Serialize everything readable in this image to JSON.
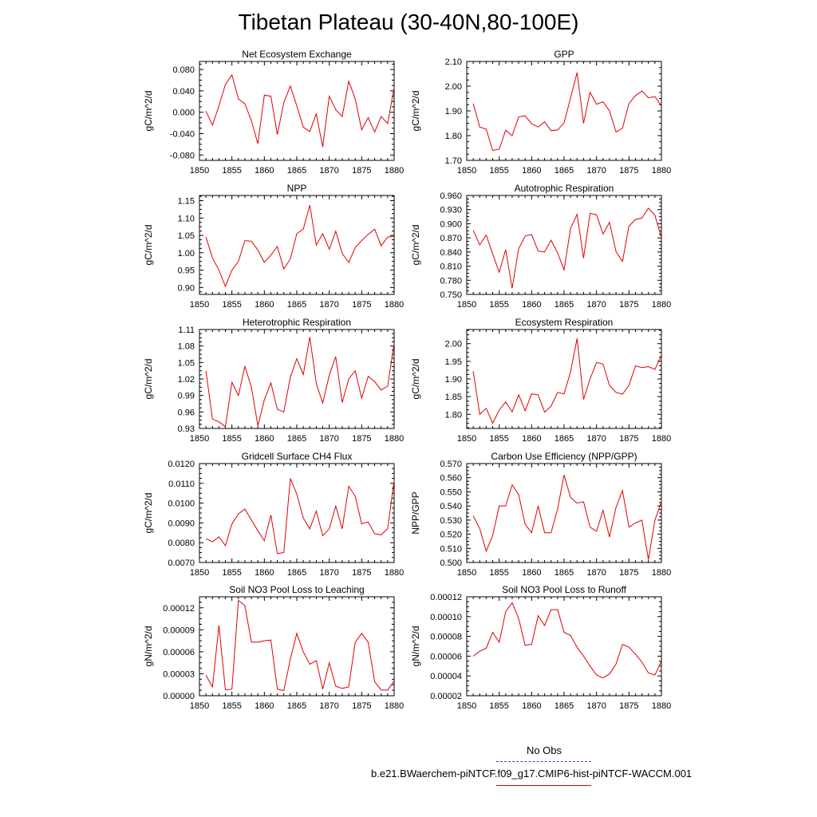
{
  "title": "Tibetan Plateau (30-40N,80-100E)",
  "legend": {
    "items": [
      {
        "label": "No Obs",
        "color": "#3a3ad8",
        "style": "dashed"
      },
      {
        "label": "b.e21.BWaerchem-piNTCF.f09_g17.CMIP6-hist-piNTCF-WACCM.001",
        "color": "#e00000",
        "style": "solid"
      }
    ]
  },
  "chart_data": [
    {
      "type": "line",
      "title": "Net Ecosystem Exchange",
      "ylabel": "gC/m^2/d",
      "xlim": [
        1850,
        1880
      ],
      "ylim": [
        -0.09,
        0.095
      ],
      "xticks": [
        1850,
        1855,
        1860,
        1865,
        1870,
        1875,
        1880
      ],
      "yticks": [
        "-0.080",
        "-0.040",
        "0.000",
        "0.040",
        "0.080"
      ],
      "ytick_values": [
        -0.08,
        -0.04,
        0.0,
        0.04,
        0.08
      ],
      "series": [
        {
          "color": "#e00000",
          "x": [
            1851,
            1852,
            1853,
            1854,
            1855,
            1856,
            1857,
            1858,
            1859,
            1860,
            1861,
            1862,
            1863,
            1864,
            1865,
            1866,
            1867,
            1868,
            1869,
            1870,
            1871,
            1872,
            1873,
            1874,
            1875,
            1876,
            1877,
            1878,
            1879,
            1880
          ],
          "values": [
            0.002,
            -0.024,
            0.012,
            0.052,
            0.07,
            0.025,
            0.016,
            -0.016,
            -0.059,
            0.032,
            0.03,
            -0.042,
            0.018,
            0.049,
            0.012,
            -0.028,
            -0.036,
            -0.003,
            -0.065,
            0.03,
            0.005,
            -0.008,
            0.058,
            0.025,
            -0.033,
            -0.01,
            -0.037,
            -0.008,
            -0.021,
            0.046
          ]
        }
      ]
    },
    {
      "type": "line",
      "title": "GPP",
      "ylabel": "gC/m^2/d",
      "xlim": [
        1850,
        1880
      ],
      "ylim": [
        1.7,
        2.1
      ],
      "xticks": [
        1850,
        1855,
        1860,
        1865,
        1870,
        1875,
        1880
      ],
      "yticks": [
        "1.70",
        "1.80",
        "1.90",
        "2.00",
        "2.10"
      ],
      "ytick_values": [
        1.7,
        1.8,
        1.9,
        2.0,
        2.1
      ],
      "series": [
        {
          "color": "#e00000",
          "x": [
            1851,
            1852,
            1853,
            1854,
            1855,
            1856,
            1857,
            1858,
            1859,
            1860,
            1861,
            1862,
            1863,
            1864,
            1865,
            1866,
            1867,
            1868,
            1869,
            1870,
            1871,
            1872,
            1873,
            1874,
            1875,
            1876,
            1877,
            1878,
            1879,
            1880
          ],
          "values": [
            1.93,
            1.835,
            1.826,
            1.74,
            1.745,
            1.822,
            1.8,
            1.876,
            1.88,
            1.848,
            1.835,
            1.856,
            1.82,
            1.823,
            1.852,
            1.952,
            2.055,
            1.85,
            1.975,
            1.927,
            1.937,
            1.9,
            1.815,
            1.83,
            1.93,
            1.962,
            1.98,
            1.953,
            1.958,
            1.92
          ]
        }
      ]
    },
    {
      "type": "line",
      "title": "NPP",
      "ylabel": "gC/m^2/d",
      "xlim": [
        1850,
        1880
      ],
      "ylim": [
        0.88,
        1.165
      ],
      "xticks": [
        1850,
        1855,
        1860,
        1865,
        1870,
        1875,
        1880
      ],
      "yticks": [
        "0.90",
        "0.95",
        "1.00",
        "1.05",
        "1.10",
        "1.15"
      ],
      "ytick_values": [
        0.9,
        0.95,
        1.0,
        1.05,
        1.1,
        1.15
      ],
      "series": [
        {
          "color": "#e00000",
          "x": [
            1851,
            1852,
            1853,
            1854,
            1855,
            1856,
            1857,
            1858,
            1859,
            1860,
            1861,
            1862,
            1863,
            1864,
            1865,
            1866,
            1867,
            1868,
            1869,
            1870,
            1871,
            1872,
            1873,
            1874,
            1875,
            1876,
            1877,
            1878,
            1879,
            1880
          ],
          "values": [
            1.046,
            0.985,
            0.95,
            0.903,
            0.95,
            0.975,
            1.035,
            1.033,
            1.008,
            0.972,
            0.993,
            1.018,
            0.953,
            0.982,
            1.055,
            1.068,
            1.137,
            1.022,
            1.055,
            1.01,
            1.062,
            0.998,
            0.972,
            1.015,
            1.035,
            1.053,
            1.068,
            1.02,
            1.045,
            1.048
          ]
        }
      ]
    },
    {
      "type": "line",
      "title": "Autotrophic Respiration",
      "ylabel": "gC/m^2/d",
      "xlim": [
        1850,
        1880
      ],
      "ylim": [
        0.75,
        0.96
      ],
      "xticks": [
        1850,
        1855,
        1860,
        1865,
        1870,
        1875,
        1880
      ],
      "yticks": [
        "0.750",
        "0.780",
        "0.810",
        "0.840",
        "0.870",
        "0.900",
        "0.930",
        "0.960"
      ],
      "ytick_values": [
        0.75,
        0.78,
        0.81,
        0.84,
        0.87,
        0.9,
        0.93,
        0.96
      ],
      "series": [
        {
          "color": "#e00000",
          "x": [
            1851,
            1852,
            1853,
            1854,
            1855,
            1856,
            1857,
            1858,
            1859,
            1860,
            1861,
            1862,
            1863,
            1864,
            1865,
            1866,
            1867,
            1868,
            1869,
            1870,
            1871,
            1872,
            1873,
            1874,
            1875,
            1876,
            1877,
            1878,
            1879,
            1880
          ],
          "values": [
            0.886,
            0.855,
            0.876,
            0.836,
            0.797,
            0.845,
            0.763,
            0.847,
            0.874,
            0.877,
            0.842,
            0.84,
            0.865,
            0.838,
            0.802,
            0.89,
            0.92,
            0.827,
            0.922,
            0.919,
            0.878,
            0.903,
            0.841,
            0.82,
            0.895,
            0.909,
            0.912,
            0.933,
            0.918,
            0.87
          ]
        }
      ]
    },
    {
      "type": "line",
      "title": "Heterotrophic Respiration",
      "ylabel": "gC/m^2/d",
      "xlim": [
        1850,
        1880
      ],
      "ylim": [
        0.93,
        1.11
      ],
      "xticks": [
        1850,
        1855,
        1860,
        1865,
        1870,
        1875,
        1880
      ],
      "yticks": [
        "0.93",
        "0.96",
        "0.99",
        "1.02",
        "1.05",
        "1.08",
        "1.11"
      ],
      "ytick_values": [
        0.93,
        0.96,
        0.99,
        1.02,
        1.05,
        1.08,
        1.11
      ],
      "series": [
        {
          "color": "#e00000",
          "x": [
            1851,
            1852,
            1853,
            1854,
            1855,
            1856,
            1857,
            1858,
            1859,
            1860,
            1861,
            1862,
            1863,
            1864,
            1865,
            1866,
            1867,
            1868,
            1869,
            1870,
            1871,
            1872,
            1873,
            1874,
            1875,
            1876,
            1877,
            1878,
            1879,
            1880
          ],
          "values": [
            1.035,
            0.947,
            0.942,
            0.933,
            1.014,
            0.99,
            1.043,
            1.005,
            0.935,
            0.982,
            1.013,
            0.965,
            0.96,
            1.023,
            1.057,
            1.028,
            1.096,
            1.012,
            0.976,
            1.027,
            1.061,
            0.977,
            1.02,
            1.035,
            0.985,
            1.025,
            1.015,
            1.0,
            1.007,
            1.085
          ]
        }
      ]
    },
    {
      "type": "line",
      "title": "Ecosystem Respiration",
      "ylabel": "gC/m^2/d",
      "xlim": [
        1850,
        1880
      ],
      "ylim": [
        1.76,
        2.04
      ],
      "xticks": [
        1850,
        1855,
        1860,
        1865,
        1870,
        1875,
        1880
      ],
      "yticks": [
        "1.80",
        "1.85",
        "1.90",
        "1.95",
        "2.00"
      ],
      "ytick_values": [
        1.8,
        1.85,
        1.9,
        1.95,
        2.0
      ],
      "series": [
        {
          "color": "#e00000",
          "x": [
            1851,
            1852,
            1853,
            1854,
            1855,
            1856,
            1857,
            1858,
            1859,
            1860,
            1861,
            1862,
            1863,
            1864,
            1865,
            1866,
            1867,
            1868,
            1869,
            1870,
            1871,
            1872,
            1873,
            1874,
            1875,
            1876,
            1877,
            1878,
            1879,
            1880
          ],
          "values": [
            1.922,
            1.8,
            1.817,
            1.775,
            1.812,
            1.835,
            1.807,
            1.855,
            1.81,
            1.858,
            1.855,
            1.806,
            1.823,
            1.862,
            1.858,
            1.92,
            2.015,
            1.842,
            1.9,
            1.947,
            1.942,
            1.882,
            1.862,
            1.857,
            1.882,
            1.937,
            1.932,
            1.935,
            1.927,
            1.967
          ]
        }
      ]
    },
    {
      "type": "line",
      "title": "Gridcell Surface CH4 Flux",
      "ylabel": "gC/m^2/d",
      "xlim": [
        1850,
        1880
      ],
      "ylim": [
        0.007,
        0.012
      ],
      "xticks": [
        1850,
        1855,
        1860,
        1865,
        1870,
        1875,
        1880
      ],
      "yticks": [
        "0.0070",
        "0.0080",
        "0.0090",
        "0.0100",
        "0.0110",
        "0.0120"
      ],
      "ytick_values": [
        0.007,
        0.008,
        0.009,
        0.01,
        0.011,
        0.012
      ],
      "series": [
        {
          "color": "#e00000",
          "x": [
            1851,
            1852,
            1853,
            1854,
            1855,
            1856,
            1857,
            1858,
            1859,
            1860,
            1861,
            1862,
            1863,
            1864,
            1865,
            1866,
            1867,
            1868,
            1869,
            1870,
            1871,
            1872,
            1873,
            1874,
            1875,
            1876,
            1877,
            1878,
            1879,
            1880
          ],
          "values": [
            0.0082,
            0.00805,
            0.0083,
            0.00785,
            0.00895,
            0.00945,
            0.0097,
            0.00915,
            0.0086,
            0.0081,
            0.0094,
            0.00745,
            0.0075,
            0.01125,
            0.01045,
            0.00925,
            0.0087,
            0.0096,
            0.00835,
            0.0087,
            0.00985,
            0.0087,
            0.01085,
            0.01035,
            0.00895,
            0.00905,
            0.00845,
            0.0084,
            0.0087,
            0.01115
          ]
        }
      ]
    },
    {
      "type": "line",
      "title": "Carbon Use Efficiency (NPP/GPP)",
      "ylabel": "NPP/GPP",
      "xlim": [
        1850,
        1880
      ],
      "ylim": [
        0.5,
        0.57
      ],
      "xticks": [
        1850,
        1855,
        1860,
        1865,
        1870,
        1875,
        1880
      ],
      "yticks": [
        "0.500",
        "0.510",
        "0.520",
        "0.530",
        "0.540",
        "0.550",
        "0.560",
        "0.570"
      ],
      "ytick_values": [
        0.5,
        0.51,
        0.52,
        0.53,
        0.54,
        0.55,
        0.56,
        0.57
      ],
      "series": [
        {
          "color": "#e00000",
          "x": [
            1851,
            1852,
            1853,
            1854,
            1855,
            1856,
            1857,
            1858,
            1859,
            1860,
            1861,
            1862,
            1863,
            1864,
            1865,
            1866,
            1867,
            1868,
            1869,
            1870,
            1871,
            1872,
            1873,
            1874,
            1875,
            1876,
            1877,
            1878,
            1879,
            1880
          ],
          "values": [
            0.533,
            0.524,
            0.508,
            0.519,
            0.54,
            0.54,
            0.555,
            0.548,
            0.527,
            0.521,
            0.54,
            0.521,
            0.521,
            0.538,
            0.562,
            0.546,
            0.542,
            0.543,
            0.525,
            0.522,
            0.537,
            0.518,
            0.539,
            0.551,
            0.525,
            0.528,
            0.53,
            0.502,
            0.53,
            0.543
          ]
        }
      ]
    },
    {
      "type": "line",
      "title": "Soil NO3 Pool Loss to Leaching",
      "ylabel": "gN/m^2/d",
      "xlim": [
        1850,
        1880
      ],
      "ylim": [
        0.0,
        0.000135
      ],
      "xticks": [
        1850,
        1855,
        1860,
        1865,
        1870,
        1875,
        1880
      ],
      "yticks": [
        "0.00000",
        "0.00003",
        "0.00006",
        "0.00009",
        "0.00012"
      ],
      "ytick_values": [
        0.0,
        3e-05,
        6e-05,
        9e-05,
        0.00012
      ],
      "series": [
        {
          "color": "#e00000",
          "x": [
            1851,
            1852,
            1853,
            1854,
            1855,
            1856,
            1857,
            1858,
            1859,
            1860,
            1861,
            1862,
            1863,
            1864,
            1865,
            1866,
            1867,
            1868,
            1869,
            1870,
            1871,
            1872,
            1873,
            1874,
            1875,
            1876,
            1877,
            1878,
            1879,
            1880
          ],
          "values": [
            2.8e-05,
            1.2e-05,
            9.6e-05,
            8e-06,
            9e-06,
            0.00013,
            0.000123,
            7.3e-05,
            7.3e-05,
            7.5e-05,
            7.6e-05,
            9e-06,
            7e-06,
            5e-05,
            8.5e-05,
            6e-05,
            4.3e-05,
            4.8e-05,
            9e-06,
            4.5e-05,
            1.3e-05,
            1e-05,
            1.2e-05,
            7.3e-05,
            8.5e-05,
            7.3e-05,
            1.9e-05,
            8e-06,
            8e-06,
            2e-05
          ]
        }
      ]
    },
    {
      "type": "line",
      "title": "Soil NO3 Pool Loss to Runoff",
      "ylabel": "gN/m^2/d",
      "xlim": [
        1850,
        1880
      ],
      "ylim": [
        2e-05,
        0.00012
      ],
      "xticks": [
        1850,
        1855,
        1860,
        1865,
        1870,
        1875,
        1880
      ],
      "yticks": [
        "0.00002",
        "0.00004",
        "0.00006",
        "0.00008",
        "0.00010",
        "0.00012"
      ],
      "ytick_values": [
        2e-05,
        4e-05,
        6e-05,
        8e-05,
        0.0001,
        0.00012
      ],
      "series": [
        {
          "color": "#e00000",
          "x": [
            1851,
            1852,
            1853,
            1854,
            1855,
            1856,
            1857,
            1858,
            1859,
            1860,
            1861,
            1862,
            1863,
            1864,
            1865,
            1866,
            1867,
            1868,
            1869,
            1870,
            1871,
            1872,
            1873,
            1874,
            1875,
            1876,
            1877,
            1878,
            1879,
            1880
          ],
          "values": [
            6e-05,
            6.5e-05,
            6.8e-05,
            8.4e-05,
            7.4e-05,
            0.000105,
            0.000114,
            9.8e-05,
            7.1e-05,
            7.2e-05,
            0.000101,
            9.1e-05,
            0.000107,
            0.000107,
            8.4e-05,
            8.1e-05,
            6.9e-05,
            6e-05,
            5e-05,
            4.1e-05,
            3.8e-05,
            4.2e-05,
            5.2e-05,
            7.2e-05,
            6.9e-05,
            6.2e-05,
            5.4e-05,
            4.3e-05,
            4.1e-05,
            5.5e-05
          ]
        }
      ]
    }
  ]
}
